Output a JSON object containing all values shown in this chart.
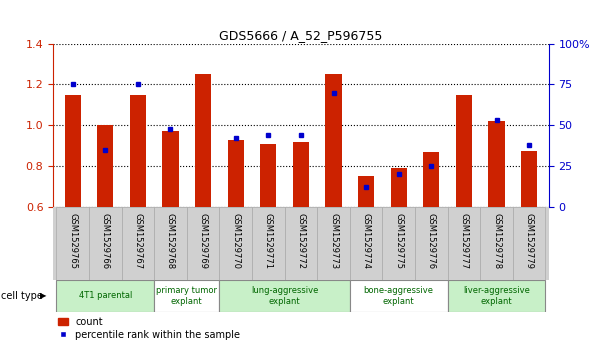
{
  "title": "GDS5666 / A_52_P596755",
  "samples": [
    "GSM1529765",
    "GSM1529766",
    "GSM1529767",
    "GSM1529768",
    "GSM1529769",
    "GSM1529770",
    "GSM1529771",
    "GSM1529772",
    "GSM1529773",
    "GSM1529774",
    "GSM1529775",
    "GSM1529776",
    "GSM1529777",
    "GSM1529778",
    "GSM1529779"
  ],
  "counts": [
    1.15,
    1.0,
    1.15,
    0.97,
    1.25,
    0.93,
    0.91,
    0.92,
    1.25,
    0.75,
    0.79,
    0.87,
    1.15,
    1.02,
    0.875
  ],
  "percentile_ranks": [
    75,
    35,
    75,
    48,
    null,
    42,
    44,
    44,
    70,
    12,
    20,
    25,
    null,
    53,
    38
  ],
  "ylim_left": [
    0.6,
    1.4
  ],
  "ylim_right": [
    0,
    100
  ],
  "yticks_left": [
    0.6,
    0.8,
    1.0,
    1.2,
    1.4
  ],
  "yticks_right": [
    0,
    25,
    50,
    75,
    100
  ],
  "cell_types": [
    {
      "label": "4T1 parental",
      "start": 0,
      "end": 3,
      "color": "#c8f0c8"
    },
    {
      "label": "primary tumor\nexplant",
      "start": 3,
      "end": 5,
      "color": "#ffffff"
    },
    {
      "label": "lung-aggressive\nexplant",
      "start": 5,
      "end": 9,
      "color": "#c8f0c8"
    },
    {
      "label": "bone-aggressive\nexplant",
      "start": 9,
      "end": 12,
      "color": "#ffffff"
    },
    {
      "label": "liver-aggressive\nexplant",
      "start": 12,
      "end": 15,
      "color": "#c8f0c8"
    }
  ],
  "bar_color": "#cc2200",
  "marker_color": "#0000cc",
  "bar_width": 0.5,
  "left_tick_color": "#cc2200",
  "right_tick_color": "#0000cc",
  "grid_color": "#000000",
  "sample_box_color": "#d0d0d0",
  "cell_type_border_color": "#888888",
  "cell_type_text_color": "#006600"
}
